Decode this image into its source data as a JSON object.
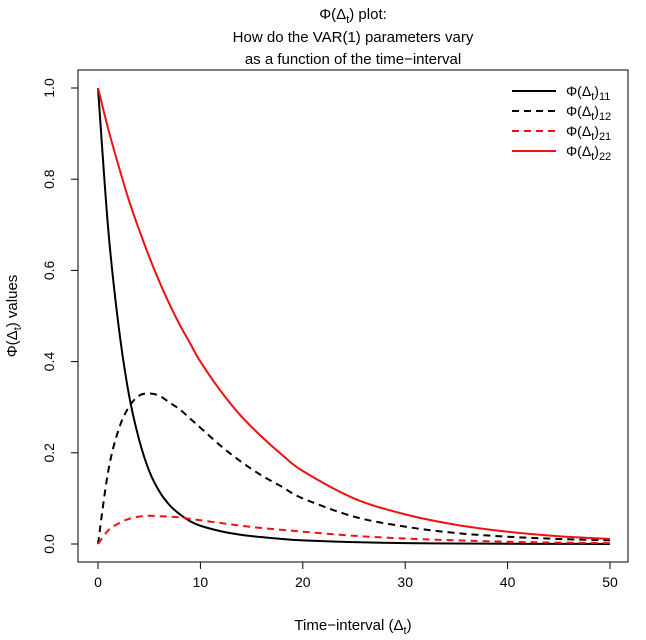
{
  "chart_data": {
    "type": "line",
    "title_lines": [
      "Φ(Δt) plot:",
      "How do the VAR(1) parameters vary",
      "as a function of the time−interval"
    ],
    "xlabel": "Time−interval (Δt)",
    "ylabel": "Φ(Δt) values",
    "xlim": [
      0,
      50
    ],
    "ylim": [
      0,
      1
    ],
    "x_ticks": [
      0,
      10,
      20,
      30,
      40,
      50
    ],
    "y_ticks": [
      0.0,
      0.2,
      0.4,
      0.6,
      0.8,
      1.0
    ],
    "y_tick_labels": [
      "0.0",
      "0.2",
      "0.4",
      "0.6",
      "0.8",
      "1.0"
    ],
    "grid": false,
    "legend_position": "top-right",
    "x": [
      0,
      1,
      2,
      3,
      4,
      5,
      6,
      7,
      8,
      9,
      10,
      12,
      14,
      16,
      18,
      20,
      25,
      30,
      35,
      40,
      45,
      50
    ],
    "series": [
      {
        "name": "Φ(Δt)11",
        "color": "#000000",
        "dash": "solid",
        "values": [
          1.0,
          0.69,
          0.48,
          0.33,
          0.23,
          0.16,
          0.115,
          0.085,
          0.065,
          0.05,
          0.04,
          0.028,
          0.02,
          0.015,
          0.011,
          0.008,
          0.004,
          0.002,
          0.001,
          0.0005,
          0.0002,
          0.0001
        ]
      },
      {
        "name": "Φ(Δt)12",
        "color": "#000000",
        "dash": "dashed",
        "values": [
          0.0,
          0.16,
          0.25,
          0.3,
          0.325,
          0.33,
          0.325,
          0.31,
          0.295,
          0.275,
          0.255,
          0.215,
          0.18,
          0.15,
          0.125,
          0.1,
          0.06,
          0.038,
          0.024,
          0.016,
          0.011,
          0.008
        ]
      },
      {
        "name": "Φ(Δt)21",
        "color": "#ee1111",
        "dash": "dashed",
        "values": [
          0.0,
          0.03,
          0.045,
          0.055,
          0.06,
          0.062,
          0.061,
          0.06,
          0.058,
          0.055,
          0.052,
          0.046,
          0.04,
          0.035,
          0.031,
          0.027,
          0.018,
          0.012,
          0.008,
          0.005,
          0.003,
          0.002
        ]
      },
      {
        "name": "Φ(Δt)22",
        "color": "#ee1111",
        "dash": "solid",
        "values": [
          1.0,
          0.91,
          0.83,
          0.755,
          0.69,
          0.63,
          0.575,
          0.525,
          0.48,
          0.44,
          0.4,
          0.335,
          0.28,
          0.235,
          0.195,
          0.16,
          0.1,
          0.065,
          0.042,
          0.027,
          0.017,
          0.011
        ]
      }
    ]
  }
}
